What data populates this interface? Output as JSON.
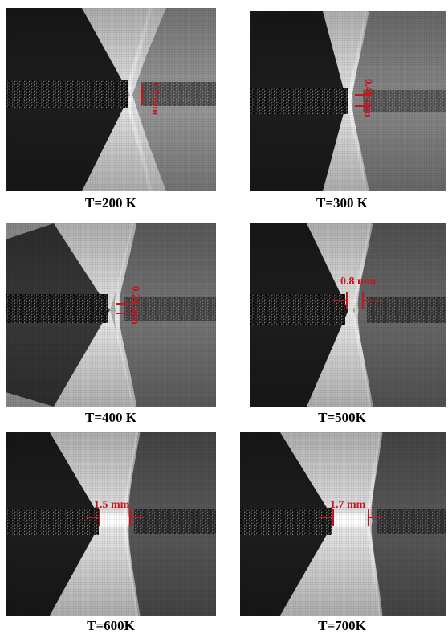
{
  "panels": [
    {
      "caption": "T=200 K",
      "measurement": "1.2 mm"
    },
    {
      "caption": "T=300 K",
      "measurement": "0.48 mm"
    },
    {
      "caption": "T=400 K",
      "measurement": "0.24 mm"
    },
    {
      "caption": "T=500K",
      "measurement": "0.8 mm"
    },
    {
      "caption": "T=600K",
      "measurement": "1.5 mm"
    },
    {
      "caption": "T=700K",
      "measurement": "1.7 mm"
    }
  ],
  "colors": {
    "annotation": "#c8141e",
    "background": "#ffffff"
  }
}
